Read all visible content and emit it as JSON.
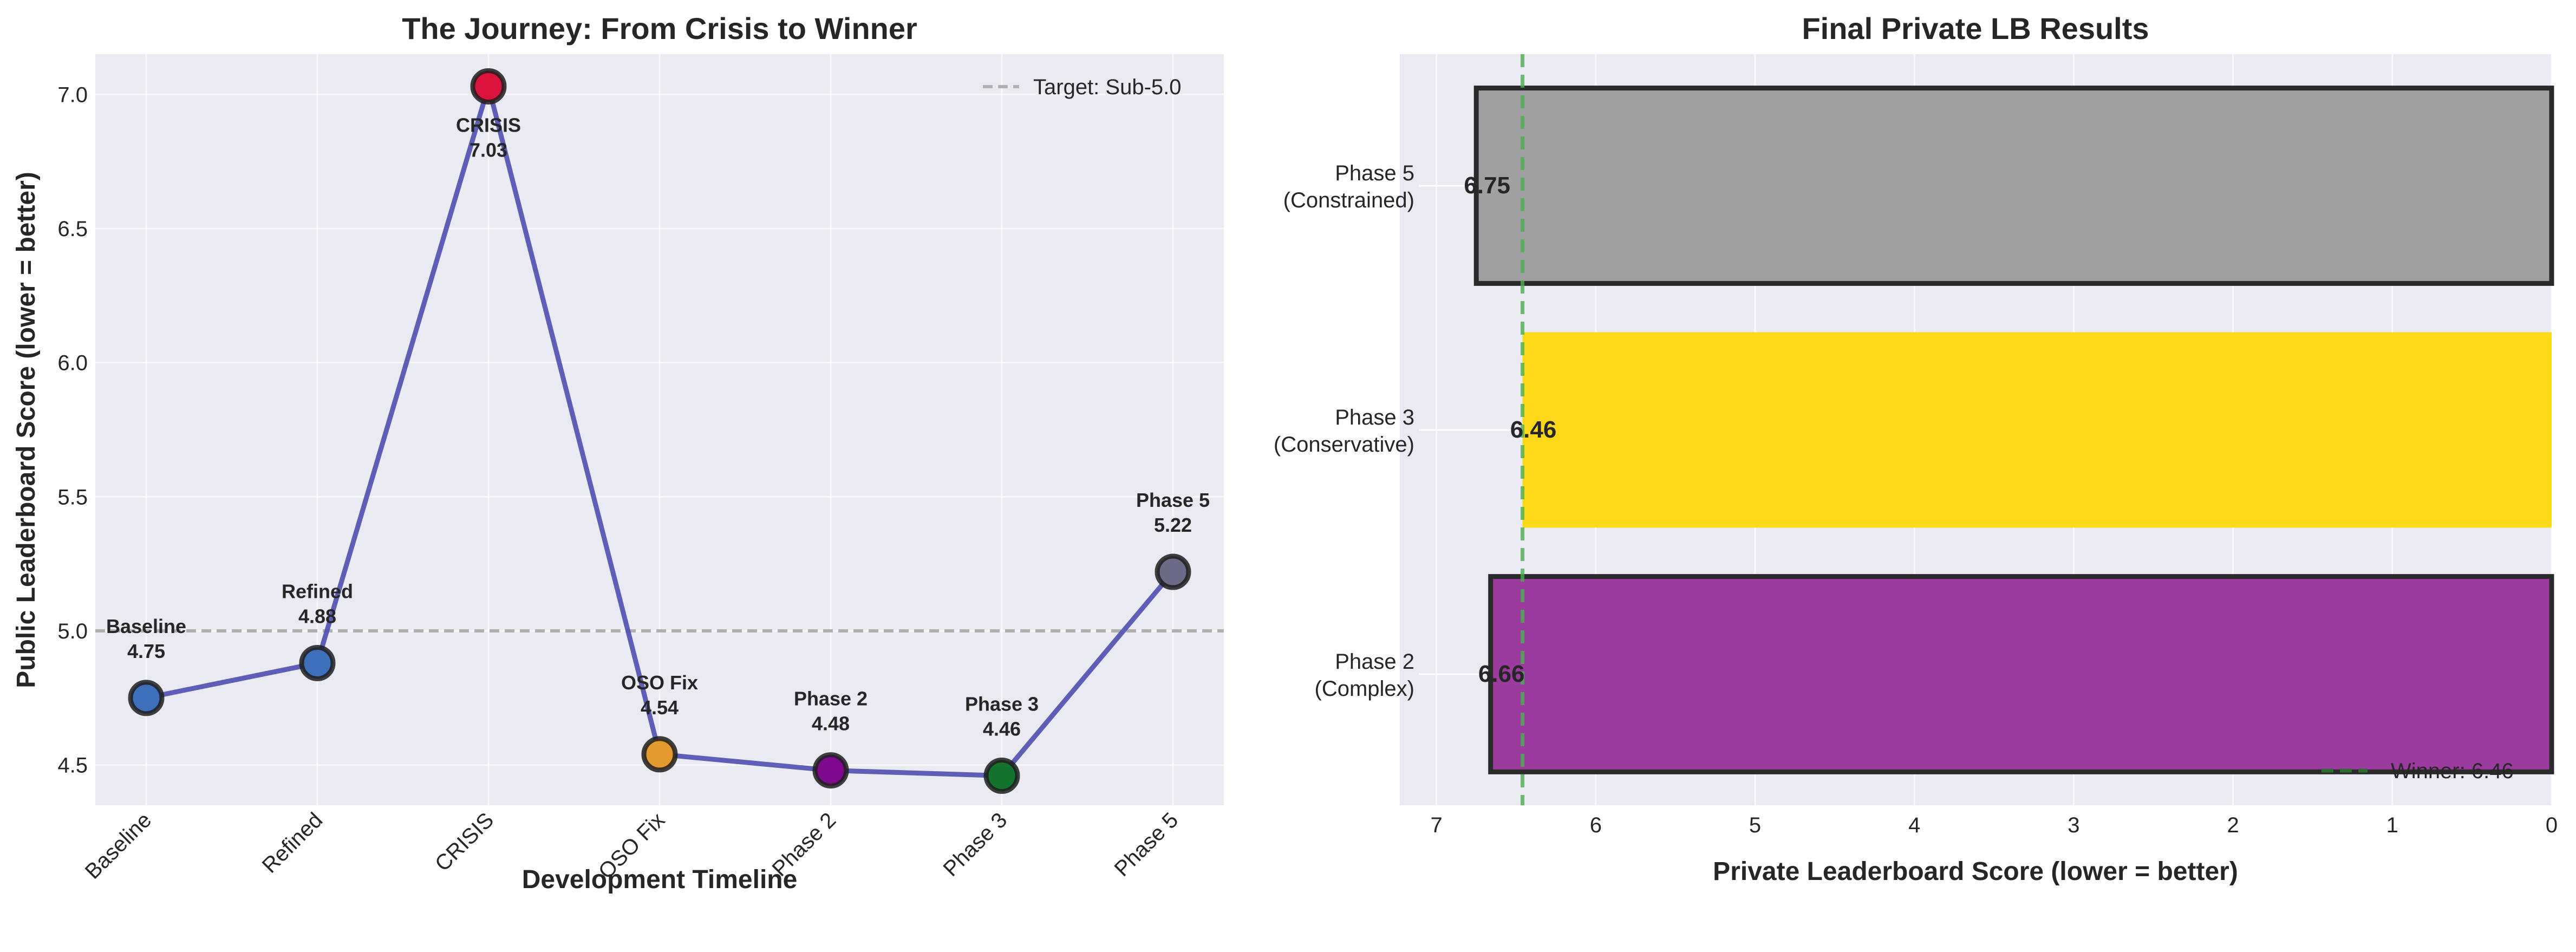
{
  "chart_data": [
    {
      "type": "line",
      "title": "The Journey: From Crisis to Winner",
      "xlabel": "Development Timeline",
      "ylabel": "Public Leaderboard Score (lower = better)",
      "categories": [
        "Baseline",
        "Refined",
        "CRISIS",
        "OSO Fix",
        "Phase 2",
        "Phase 3",
        "Phase 5"
      ],
      "values": [
        4.75,
        4.88,
        7.03,
        4.54,
        4.48,
        4.46,
        5.22
      ],
      "annotations": [
        {
          "name": "Baseline",
          "value": "4.75",
          "position": "above"
        },
        {
          "name": "Refined",
          "value": "4.88",
          "position": "above"
        },
        {
          "name": "CRISIS",
          "value": "7.03",
          "position": "below"
        },
        {
          "name": "OSO Fix",
          "value": "4.54",
          "position": "above"
        },
        {
          "name": "Phase 2",
          "value": "4.48",
          "position": "above"
        },
        {
          "name": "Phase 3",
          "value": "4.46",
          "position": "above"
        },
        {
          "name": "Phase 5",
          "value": "5.22",
          "position": "above"
        }
      ],
      "marker_colors": [
        "#3d6fba",
        "#3d6fba",
        "#dc143c",
        "#e39a2f",
        "#7d0a8c",
        "#13752d",
        "#6c6c88"
      ],
      "line_color": "#4f4fb0",
      "yticks": [
        "4.5",
        "5.0",
        "5.5",
        "6.0",
        "6.5",
        "7.0"
      ],
      "ytick_values": [
        4.5,
        5.0,
        5.5,
        6.0,
        6.5,
        7.0
      ],
      "ylim": [
        4.35,
        7.15
      ],
      "reference_line": {
        "value": 5.0,
        "label": "Target: Sub-5.0",
        "color": "#b0b0b0"
      },
      "legend_position": "top-right",
      "grid": true
    },
    {
      "type": "bar",
      "orientation": "horizontal",
      "title": "Final Private LB Results",
      "xlabel": "Private Leaderboard Score (lower = better)",
      "ylabel": "",
      "categories": [
        {
          "line1": "Phase 2",
          "line2": "(Complex)"
        },
        {
          "line1": "Phase 3",
          "line2": "(Conservative)"
        },
        {
          "line1": "Phase 5",
          "line2": "(Constrained)"
        }
      ],
      "values": [
        6.66,
        6.46,
        6.75
      ],
      "value_labels": [
        "6.66",
        "6.46",
        "6.75"
      ],
      "bar_colors": [
        "#9b3b9e",
        "#fdd816",
        "#a0a0a2"
      ],
      "bar_outlined": [
        true,
        false,
        true
      ],
      "xticks": [
        "0",
        "1",
        "2",
        "3",
        "4",
        "5",
        "6",
        "7"
      ],
      "xtick_values": [
        0,
        1,
        2,
        3,
        4,
        5,
        6,
        7
      ],
      "xlim": [
        7.23,
        0
      ],
      "x_inverted": true,
      "reference_line": {
        "value": 6.46,
        "label": "Winner: 6.46",
        "color": "#4caf50"
      },
      "legend_position": "bottom-right",
      "grid": true
    }
  ]
}
